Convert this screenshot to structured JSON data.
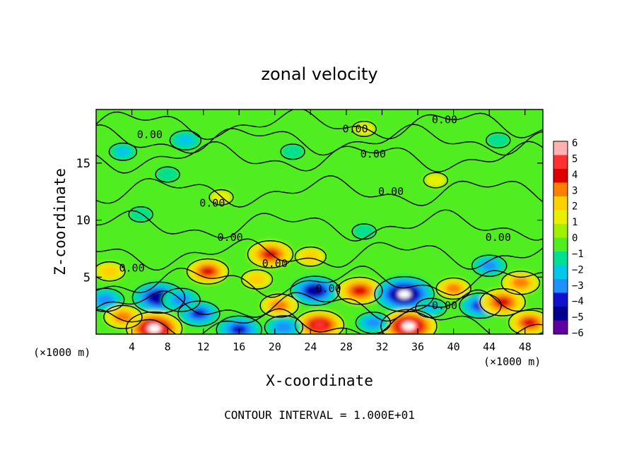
{
  "chart_data": {
    "type": "heatmap",
    "title": "zonal velocity",
    "xlabel": "X-coordinate",
    "ylabel": "Z-coordinate",
    "x_units": "(×1000 m)",
    "y_units": "(×1000 m)",
    "x_ticks": [
      4,
      8,
      12,
      16,
      20,
      24,
      28,
      32,
      36,
      40,
      44,
      48
    ],
    "y_ticks": [
      5,
      10,
      15
    ],
    "xlim": [
      0,
      50
    ],
    "ylim": [
      0,
      19.7
    ],
    "footer": "CONTOUR INTERVAL = 1.000E+01",
    "contour_label": "0.00",
    "colorbar": {
      "ticks": [
        6,
        5,
        4,
        3,
        2,
        1,
        0,
        -1,
        -2,
        -3,
        -4,
        -5,
        -6
      ],
      "colors": [
        "#ffb0b0",
        "#ff3030",
        "#e00000",
        "#ff7f00",
        "#ffd000",
        "#e8f000",
        "#a0f000",
        "#50ee20",
        "#00e090",
        "#00c8e8",
        "#1e90ff",
        "#1010d0",
        "#000090",
        "#6000a0"
      ]
    },
    "anomalies": [
      {
        "x": 12.5,
        "z": 5.5,
        "value": 3.5
      },
      {
        "x": 19.5,
        "z": 7.0,
        "value": 4.0
      },
      {
        "x": 24.5,
        "z": 3.8,
        "value": -4.5
      },
      {
        "x": 7.0,
        "z": 3.2,
        "value": -5.0
      },
      {
        "x": 6.5,
        "z": 0.5,
        "value": 5.5
      },
      {
        "x": 16.0,
        "z": 0.4,
        "value": -4.0
      },
      {
        "x": 25.0,
        "z": 0.8,
        "value": 4.5
      },
      {
        "x": 29.5,
        "z": 3.8,
        "value": 4.0
      },
      {
        "x": 34.5,
        "z": 3.5,
        "value": -6.0
      },
      {
        "x": 35.0,
        "z": 0.7,
        "value": 5.5
      },
      {
        "x": 40.0,
        "z": 4.0,
        "value": 2.5
      },
      {
        "x": 43.0,
        "z": 2.5,
        "value": -3.5
      },
      {
        "x": 45.5,
        "z": 2.8,
        "value": 4.0
      },
      {
        "x": 44.0,
        "z": 6.0,
        "value": -2.5
      },
      {
        "x": 47.5,
        "z": 4.5,
        "value": 3.0
      },
      {
        "x": 1.5,
        "z": 5.5,
        "value": 2.0
      },
      {
        "x": 1.0,
        "z": 3.0,
        "value": -3.0
      },
      {
        "x": 11.5,
        "z": 1.8,
        "value": -3.5
      },
      {
        "x": 9.5,
        "z": 3.0,
        "value": -3.0
      },
      {
        "x": 3.0,
        "z": 1.5,
        "value": 3.0
      },
      {
        "x": 20.5,
        "z": 2.5,
        "value": 3.0
      },
      {
        "x": 31.0,
        "z": 1.0,
        "value": -2.5
      },
      {
        "x": 21.0,
        "z": 0.6,
        "value": -3.0
      },
      {
        "x": 48.5,
        "z": 1.0,
        "value": 3.5
      },
      {
        "x": 37.5,
        "z": 2.3,
        "value": -2.0
      },
      {
        "x": 24.0,
        "z": 6.8,
        "value": 2.0
      },
      {
        "x": 18.0,
        "z": 4.8,
        "value": 2.0
      },
      {
        "x": 5.0,
        "z": 10.5,
        "value": -1.0
      },
      {
        "x": 14.0,
        "z": 12.0,
        "value": 1.0
      },
      {
        "x": 30.0,
        "z": 9.0,
        "value": -1.0
      },
      {
        "x": 38.0,
        "z": 13.5,
        "value": 1.0
      },
      {
        "x": 10.0,
        "z": 17.0,
        "value": -2.0
      },
      {
        "x": 3.0,
        "z": 16.0,
        "value": -1.5
      },
      {
        "x": 30.0,
        "z": 18.0,
        "value": 1.0
      },
      {
        "x": 45.0,
        "z": 17.0,
        "value": -1.0
      },
      {
        "x": 22.0,
        "z": 16.0,
        "value": -1.0
      },
      {
        "x": 8.0,
        "z": 14.0,
        "value": -1.0
      }
    ]
  }
}
